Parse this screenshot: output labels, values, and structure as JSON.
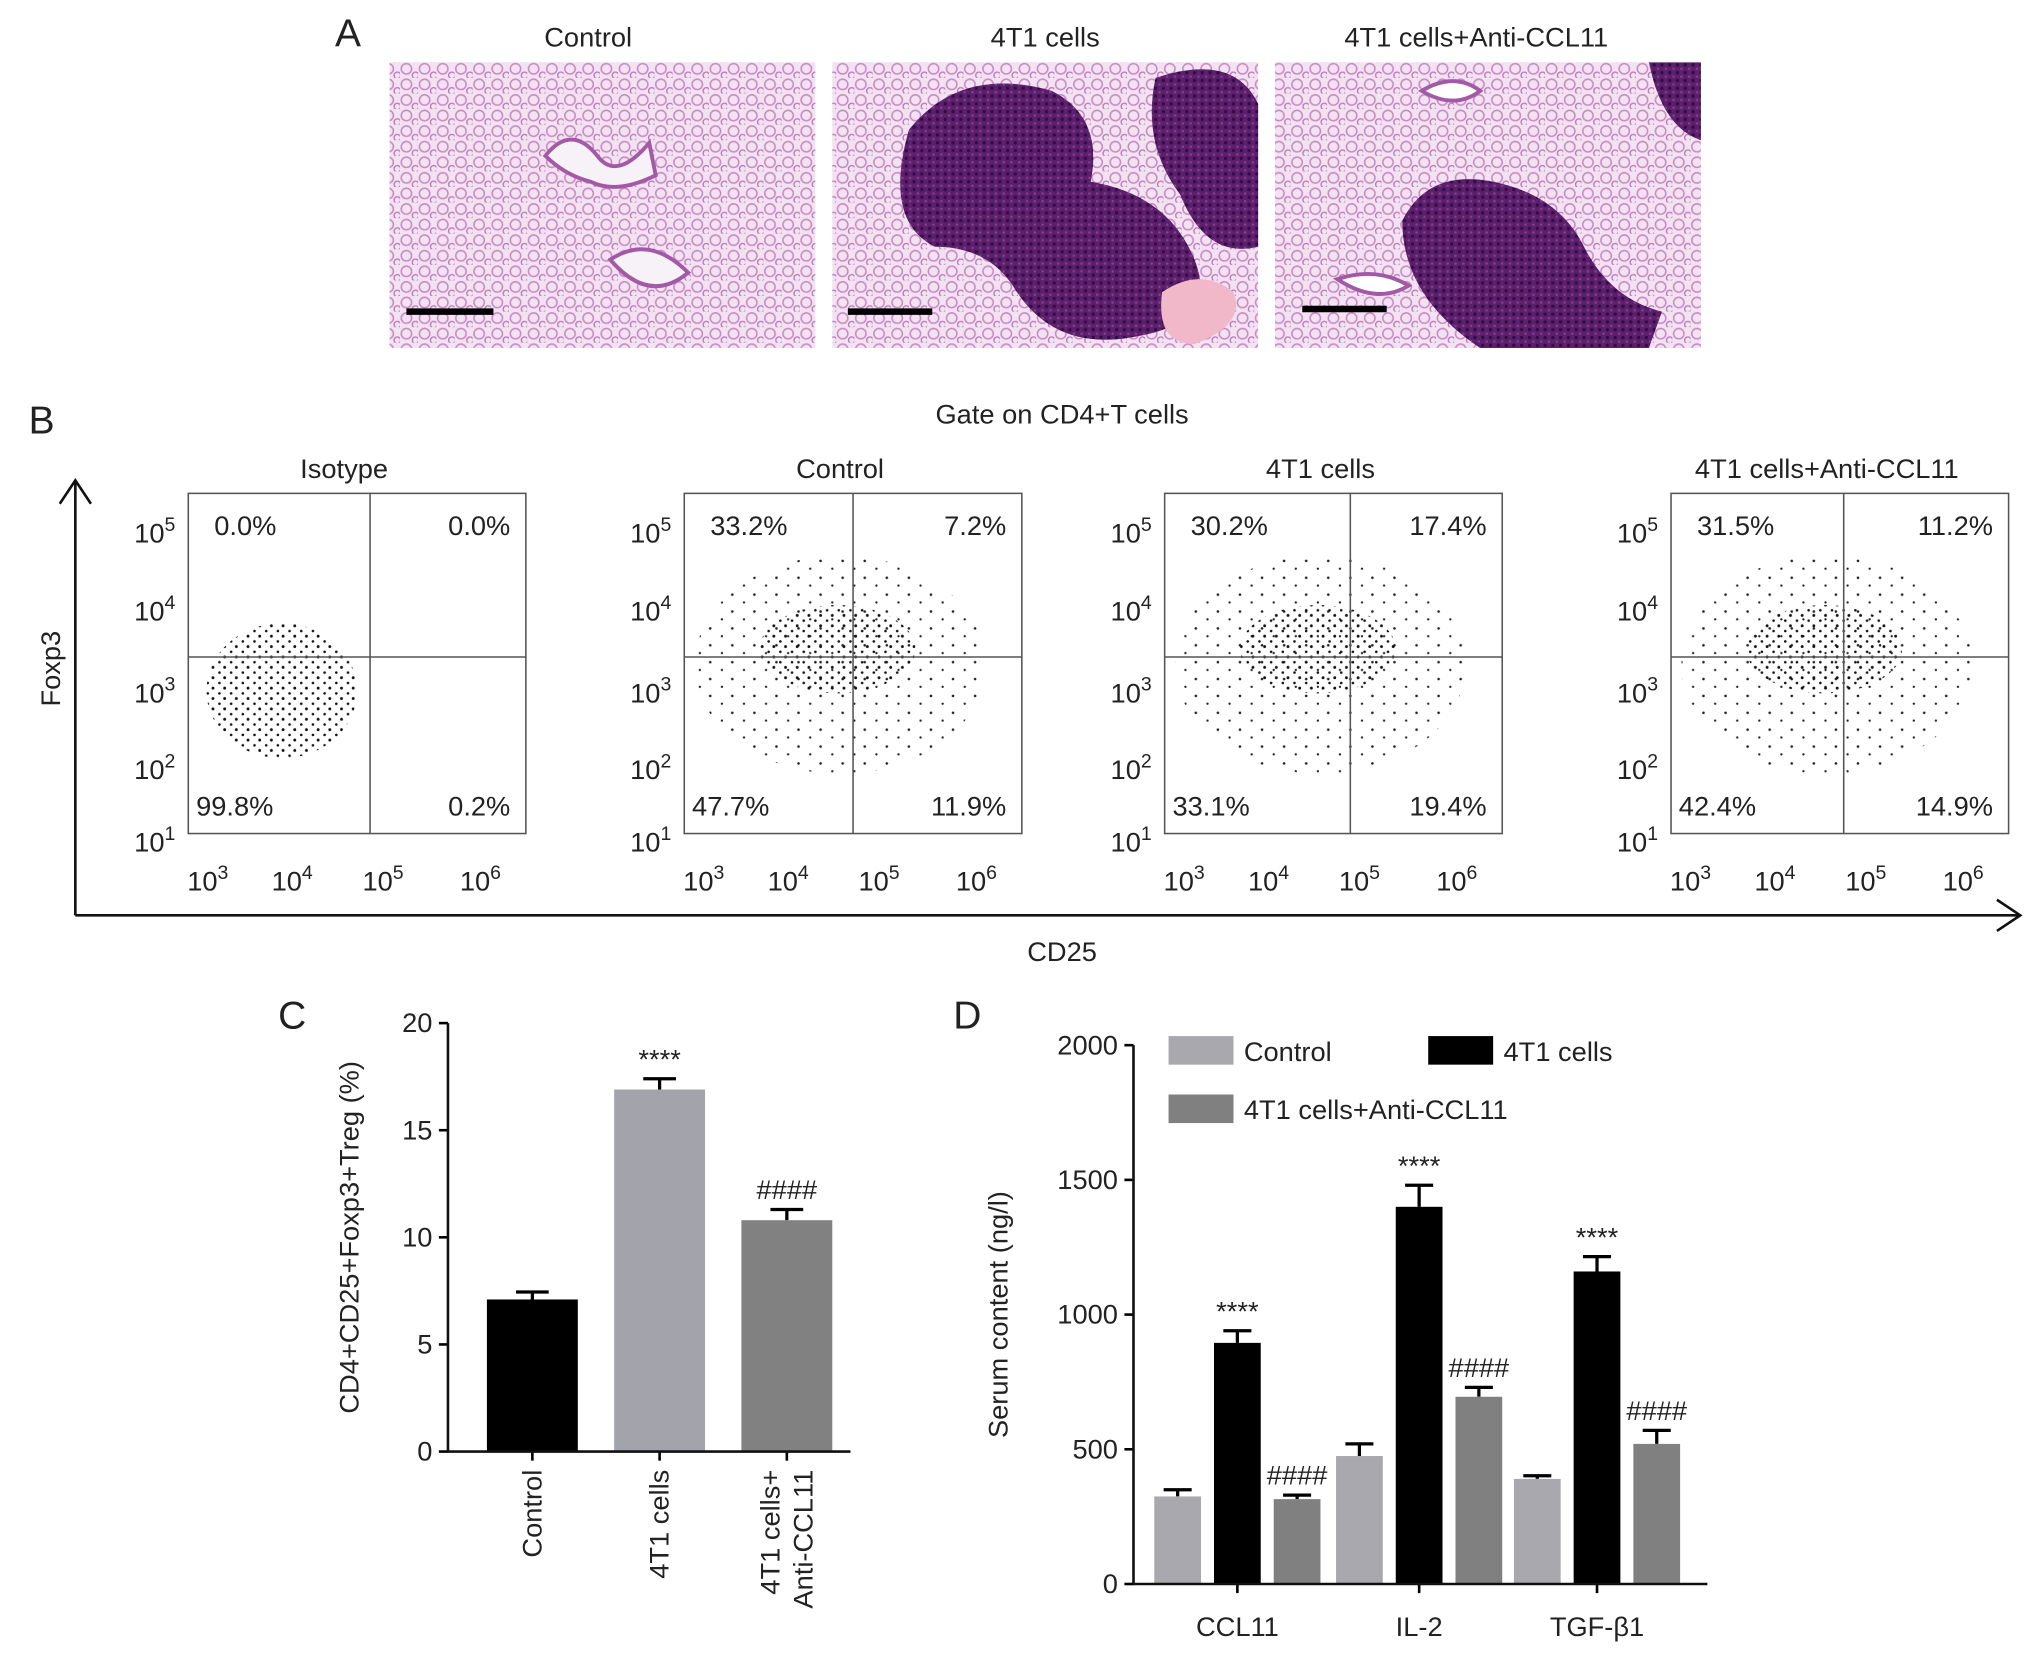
{
  "panel_a": {
    "label": "A",
    "titles": [
      "Control",
      "4T1 cells",
      "4T1 cells+Anti-CCL11"
    ]
  },
  "panel_b": {
    "label": "B",
    "title": "Gate on CD4+T cells",
    "y_label": "Foxp3",
    "x_label": "CD25",
    "x_ticks": [
      {
        "base": "10",
        "exp": "3"
      },
      {
        "base": "10",
        "exp": "4"
      },
      {
        "base": "10",
        "exp": "5"
      },
      {
        "base": "10",
        "exp": "6"
      }
    ],
    "y_ticks": [
      {
        "base": "10",
        "exp": "5"
      },
      {
        "base": "10",
        "exp": "4"
      },
      {
        "base": "10",
        "exp": "3"
      },
      {
        "base": "10",
        "exp": "2"
      },
      {
        "base": "10",
        "exp": "1"
      }
    ],
    "plots": [
      {
        "title": "Isotype",
        "quadrants": [
          "0.0%",
          "0.0%",
          "99.8%",
          "0.2%"
        ]
      },
      {
        "title": "Control",
        "quadrants": [
          "33.2%",
          "7.2%",
          "47.7%",
          "11.9%"
        ]
      },
      {
        "title": "4T1 cells",
        "quadrants": [
          "30.2%",
          "17.4%",
          "33.1%",
          "19.4%"
        ]
      },
      {
        "title": "4T1 cells+Anti-CCL11",
        "quadrants": [
          "31.5%",
          "11.2%",
          "42.4%",
          "14.9%"
        ]
      }
    ]
  },
  "chart_data": [
    {
      "panel_label": "C",
      "type": "bar",
      "categories": [
        "Control",
        "4T1 cells",
        "4T1 cells+\nAnti-CCL11"
      ],
      "values": [
        7.1,
        16.9,
        10.8
      ],
      "errors": [
        0.35,
        0.5,
        0.5
      ],
      "colors": [
        "#000000",
        "#a3a3ab",
        "#818181"
      ],
      "annotations": [
        null,
        "****",
        "####"
      ],
      "y_label": "CD4+CD25+Foxp3+Treg (%)",
      "ylim": [
        0,
        20
      ],
      "yticks": [
        0,
        5,
        10,
        15,
        20
      ]
    },
    {
      "panel_label": "D",
      "type": "grouped_bar",
      "categories": [
        "CCL11",
        "IL-2",
        "TGF-β1"
      ],
      "series": [
        {
          "name": "Control",
          "color": "#a8a8ae",
          "values": [
            325,
            475,
            390
          ],
          "errors": [
            25,
            45,
            12
          ]
        },
        {
          "name": "4T1 cells",
          "color": "#000000",
          "values": [
            895,
            1400,
            1160
          ],
          "errors": [
            45,
            80,
            55
          ],
          "annotations": [
            "****",
            "****",
            "****"
          ]
        },
        {
          "name": "4T1 cells+Anti-CCL11",
          "color": "#808080",
          "values": [
            315,
            695,
            520
          ],
          "errors": [
            15,
            35,
            50
          ],
          "annotations": [
            "####",
            "####",
            "####"
          ]
        }
      ],
      "y_label": "Serum content (ng/l)",
      "ylim": [
        0,
        2000
      ],
      "yticks": [
        0,
        500,
        1000,
        1500,
        2000
      ]
    }
  ]
}
